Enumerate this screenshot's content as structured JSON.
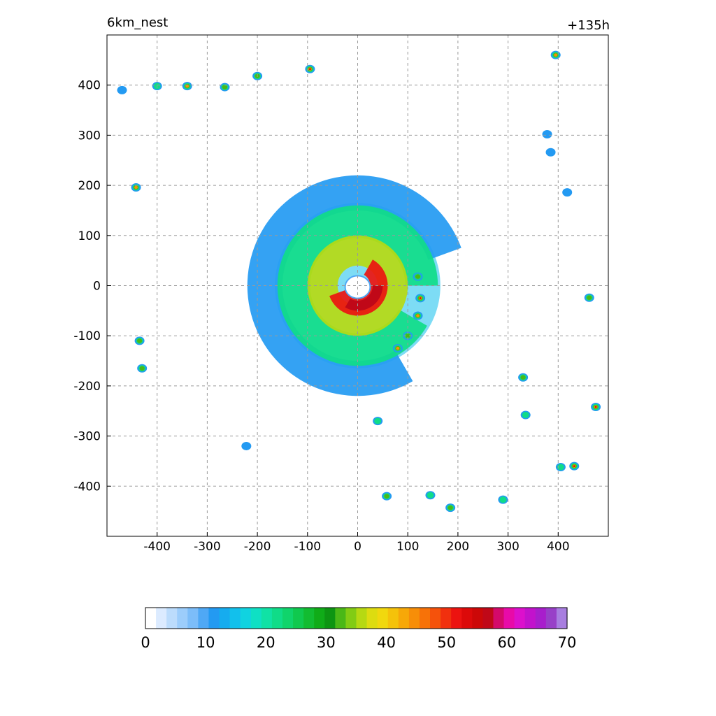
{
  "chart_data": {
    "type": "heatmap",
    "title_left": "6km_nest",
    "title_right": "+135h",
    "xlabel": "",
    "ylabel": "",
    "xlim": [
      -500,
      500
    ],
    "ylim": [
      -500,
      500
    ],
    "x_ticks": [
      -400,
      -300,
      -200,
      -100,
      0,
      100,
      200,
      300,
      400
    ],
    "y_ticks": [
      400,
      300,
      200,
      100,
      0,
      -100,
      -200,
      -300,
      -400
    ],
    "grid": true,
    "grid_style": "dashed",
    "colorbar": {
      "range": [
        0,
        70
      ],
      "ticks": [
        0,
        10,
        20,
        30,
        40,
        50,
        60,
        70
      ],
      "colors": [
        "#ffffff",
        "#dcebff",
        "#bcdcfc",
        "#9ccdfb",
        "#7cbdf9",
        "#4fa8f5",
        "#239af2",
        "#16acef",
        "#12c0ec",
        "#10d3e0",
        "#0fe0c4",
        "#10e2a5",
        "#10dc88",
        "#10d46b",
        "#10c94e",
        "#12bc31",
        "#10ac18",
        "#0d9512",
        "#4ab817",
        "#82cc14",
        "#b6d912",
        "#dddc10",
        "#f1d80e",
        "#f5c20a",
        "#f7a808",
        "#f78e08",
        "#f77208",
        "#f5520b",
        "#f1300e",
        "#ec1310",
        "#dc0a0a",
        "#cc0808",
        "#c00818",
        "#d4096a",
        "#e80aa8",
        "#dc10cc",
        "#c212cc",
        "#a81ecc",
        "#9840c8",
        "#a87ee0"
      ]
    },
    "storm_center": [
      0,
      0
    ],
    "eye_radius_approx": 25,
    "rain_bands": [
      {
        "name": "outer-band",
        "inner_radius": 150,
        "outer_radius": 220,
        "start_deg": 20,
        "end_deg": 300,
        "value": 12
      },
      {
        "name": "middle-band",
        "inner_radius": 95,
        "outer_radius": 160,
        "start_deg": 0,
        "end_deg": 330,
        "value": 22
      },
      {
        "name": "inner-band",
        "inner_radius": 40,
        "outer_radius": 100,
        "start_deg": 0,
        "end_deg": 360,
        "value": 36
      },
      {
        "name": "eyewall",
        "inner_radius": 25,
        "outer_radius": 60,
        "start_deg": 200,
        "end_deg": 420,
        "value": 52
      }
    ],
    "cells": [
      {
        "x": -95,
        "y": 432,
        "value": 50
      },
      {
        "x": 395,
        "y": 460,
        "value": 45
      },
      {
        "x": 475,
        "y": -242,
        "value": 55
      },
      {
        "x": 432,
        "y": -360,
        "value": 50
      },
      {
        "x": -340,
        "y": 398,
        "value": 40
      },
      {
        "x": -200,
        "y": 418,
        "value": 35
      },
      {
        "x": -265,
        "y": 396,
        "value": 30
      },
      {
        "x": -470,
        "y": 390,
        "value": 15
      },
      {
        "x": -442,
        "y": 196,
        "value": 40
      },
      {
        "x": -435,
        "y": -110,
        "value": 35
      },
      {
        "x": -430,
        "y": -165,
        "value": 35
      },
      {
        "x": 462,
        "y": -24,
        "value": 30
      },
      {
        "x": 330,
        "y": -183,
        "value": 30
      },
      {
        "x": 335,
        "y": -258,
        "value": 25
      },
      {
        "x": 58,
        "y": -420,
        "value": 35
      },
      {
        "x": 40,
        "y": -270,
        "value": 25
      },
      {
        "x": 145,
        "y": -418,
        "value": 20
      },
      {
        "x": 185,
        "y": -443,
        "value": 30
      },
      {
        "x": 290,
        "y": -427,
        "value": 25
      },
      {
        "x": 405,
        "y": -362,
        "value": 25
      },
      {
        "x": 80,
        "y": -125,
        "value": 40
      },
      {
        "x": 125,
        "y": -25,
        "value": 50
      },
      {
        "x": 120,
        "y": -60,
        "value": 40
      },
      {
        "x": 100,
        "y": -100,
        "value": 35
      },
      {
        "x": 120,
        "y": 18,
        "value": 30
      },
      {
        "x": -400,
        "y": 398,
        "value": 20
      },
      {
        "x": 385,
        "y": 266,
        "value": 15
      },
      {
        "x": 378,
        "y": 302,
        "value": 15
      },
      {
        "x": 418,
        "y": 186,
        "value": 15
      },
      {
        "x": -222,
        "y": -320,
        "value": 12
      }
    ]
  }
}
